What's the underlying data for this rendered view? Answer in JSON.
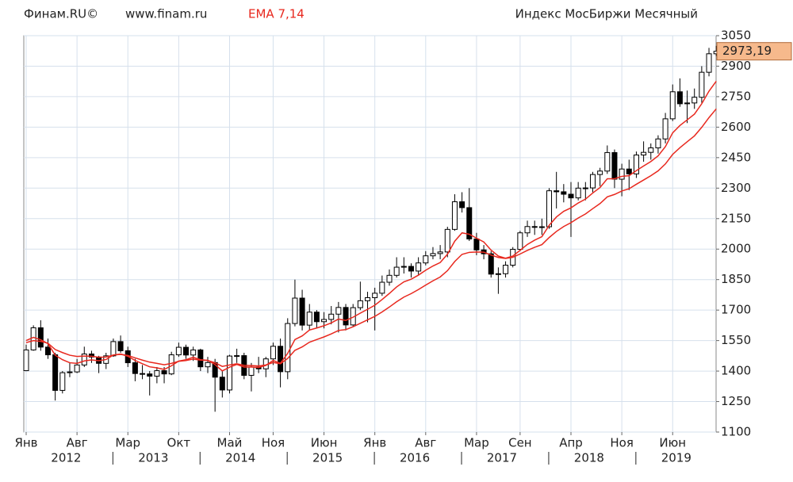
{
  "chart_data": {
    "type": "candlestick",
    "source": "Финам.RU©",
    "url": "www.finam.ru",
    "indicator": "EMA 7,14",
    "title": "Индекс МосБиржи Месячный",
    "categories": [
      "Янв",
      null,
      null,
      null,
      null,
      null,
      null,
      "Авг",
      null,
      null,
      null,
      null,
      null,
      null,
      "Мар",
      null,
      null,
      null,
      null,
      null,
      null,
      "Окт",
      null,
      null,
      null,
      null,
      null,
      null,
      "Май",
      null,
      null,
      null,
      null,
      null,
      "Ноя",
      null,
      null,
      null,
      null,
      null,
      null,
      "Июн",
      null,
      null,
      null,
      null,
      null,
      null,
      "Янв",
      null,
      null,
      null,
      null,
      null,
      null,
      "Авг",
      null,
      null,
      null,
      null,
      null,
      null,
      "Мар",
      null,
      null,
      null,
      null,
      null,
      "Сен",
      null,
      null,
      null,
      null,
      null,
      null,
      "Апр",
      null,
      null,
      null,
      null,
      null,
      null,
      "Ноя",
      null,
      null,
      null,
      null,
      null,
      null,
      "Июн",
      null,
      null,
      null,
      null,
      null,
      null
    ],
    "x_groups": [
      "2012",
      "2013",
      "2014",
      "2015",
      "2016",
      "2017",
      "2018",
      "2019"
    ],
    "open": [
      1402,
      1504,
      1613,
      1518,
      1480,
      1305,
      1392,
      1396,
      1430,
      1484,
      1469,
      1438,
      1475,
      1545,
      1500,
      1441,
      1388,
      1386,
      1375,
      1402,
      1386,
      1480,
      1517,
      1479,
      1504,
      1421,
      1442,
      1370,
      1307,
      1474,
      1476,
      1379,
      1420,
      1411,
      1460,
      1522,
      1397,
      1634,
      1759,
      1626,
      1690,
      1643,
      1654,
      1680,
      1713,
      1627,
      1712,
      1746,
      1761,
      1783,
      1837,
      1871,
      1911,
      1915,
      1892,
      1932,
      1967,
      1978,
      1986,
      2097,
      2233,
      2204,
      2050,
      1996,
      1977,
      1877,
      1879,
      1921,
      1999,
      2080,
      2111,
      2107,
      2110,
      2287,
      2282,
      2270,
      2252,
      2300,
      2301,
      2367,
      2384,
      2475,
      2344,
      2394,
      2370,
      2463,
      2476,
      2498,
      2542,
      2641,
      2774,
      2715,
      2719,
      2747,
      2870,
      2961
    ],
    "high": [
      1530,
      1625,
      1650,
      1560,
      1490,
      1400,
      1440,
      1460,
      1520,
      1500,
      1475,
      1490,
      1560,
      1575,
      1520,
      1460,
      1430,
      1400,
      1420,
      1420,
      1495,
      1540,
      1530,
      1520,
      1510,
      1470,
      1460,
      1400,
      1480,
      1510,
      1490,
      1440,
      1470,
      1470,
      1540,
      1560,
      1660,
      1850,
      1800,
      1730,
      1700,
      1690,
      1720,
      1740,
      1730,
      1730,
      1840,
      1790,
      1810,
      1870,
      1900,
      1960,
      1960,
      1930,
      1960,
      1990,
      2010,
      2020,
      2110,
      2270,
      2280,
      2300,
      2080,
      2020,
      1990,
      1910,
      1940,
      2010,
      2090,
      2140,
      2140,
      2150,
      2300,
      2380,
      2320,
      2330,
      2330,
      2330,
      2380,
      2400,
      2510,
      2490,
      2420,
      2440,
      2480,
      2530,
      2520,
      2560,
      2670,
      2810,
      2840,
      2780,
      2790,
      2900,
      2990,
      3000
    ],
    "low": [
      1400,
      1500,
      1500,
      1460,
      1255,
      1290,
      1370,
      1390,
      1420,
      1440,
      1390,
      1410,
      1470,
      1490,
      1420,
      1350,
      1360,
      1280,
      1340,
      1340,
      1380,
      1470,
      1460,
      1450,
      1400,
      1390,
      1200,
      1270,
      1290,
      1440,
      1360,
      1300,
      1390,
      1370,
      1430,
      1320,
      1360,
      1620,
      1600,
      1600,
      1610,
      1610,
      1630,
      1590,
      1600,
      1620,
      1700,
      1640,
      1600,
      1770,
      1820,
      1860,
      1880,
      1860,
      1870,
      1920,
      1950,
      1950,
      1960,
      2090,
      2180,
      2040,
      1970,
      1950,
      1860,
      1780,
      1860,
      1910,
      1990,
      2060,
      2070,
      2070,
      2100,
      2200,
      2230,
      2060,
      2240,
      2240,
      2280,
      2310,
      2370,
      2300,
      2260,
      2290,
      2350,
      2430,
      2440,
      2470,
      2520,
      2630,
      2700,
      2620,
      2690,
      2720,
      2850,
      2950
    ],
    "close": [
      1504,
      1613,
      1518,
      1480,
      1305,
      1392,
      1396,
      1430,
      1484,
      1469,
      1438,
      1475,
      1545,
      1500,
      1441,
      1388,
      1386,
      1375,
      1402,
      1386,
      1480,
      1517,
      1479,
      1504,
      1421,
      1442,
      1370,
      1307,
      1474,
      1476,
      1379,
      1420,
      1411,
      1460,
      1522,
      1397,
      1634,
      1759,
      1626,
      1690,
      1643,
      1654,
      1680,
      1713,
      1627,
      1712,
      1746,
      1761,
      1783,
      1837,
      1871,
      1911,
      1915,
      1892,
      1932,
      1967,
      1978,
      1986,
      2097,
      2233,
      2204,
      2050,
      1996,
      1977,
      1877,
      1879,
      1921,
      1999,
      2080,
      2111,
      2107,
      2110,
      2287,
      2282,
      2270,
      2252,
      2300,
      2301,
      2367,
      2384,
      2475,
      2344,
      2394,
      2370,
      2463,
      2476,
      2498,
      2542,
      2641,
      2774,
      2715,
      2719,
      2747,
      2870,
      2961,
      2973.19
    ],
    "up_color": "#ffffff",
    "down_color": "#000000",
    "series": [
      {
        "color": "#e8281e",
        "values": [
          1550,
          1566,
          1554,
          1535,
          1478,
          1456,
          1441,
          1438,
          1450,
          1455,
          1451,
          1457,
          1479,
          1484,
          1473,
          1452,
          1436,
          1421,
          1416,
          1408,
          1426,
          1449,
          1456,
          1468,
          1456,
          1453,
          1432,
          1401,
          1419,
          1433,
          1420,
          1420,
          1418,
          1428,
          1452,
          1438,
          1487,
          1555,
          1573,
          1602,
          1612,
          1623,
          1637,
          1656,
          1649,
          1665,
          1685,
          1704,
          1724,
          1752,
          1782,
          1814,
          1839,
          1852,
          1872,
          1896,
          1917,
          1934,
          1975,
          2039,
          2080,
          2073,
          2054,
          2035,
          1995,
          1966,
          1955,
          1966,
          1994,
          2023,
          2044,
          2061,
          2117,
          2158,
          2186,
          2203,
          2227,
          2246,
          2276,
          2303,
          2346,
          2346,
          2358,
          2361,
          2386,
          2409,
          2431,
          2459,
          2504,
          2572,
          2608,
          2636,
          2664,
          2715,
          2777,
          2826
        ]
      },
      {
        "color": "#e8281e",
        "values": [
          1540,
          1550,
          1546,
          1537,
          1506,
          1491,
          1478,
          1472,
          1474,
          1473,
          1468,
          1469,
          1479,
          1482,
          1477,
          1465,
          1454,
          1444,
          1438,
          1431,
          1438,
          1448,
          1452,
          1459,
          1454,
          1452,
          1441,
          1423,
          1430,
          1436,
          1428,
          1427,
          1425,
          1430,
          1442,
          1436,
          1462,
          1502,
          1519,
          1542,
          1555,
          1568,
          1583,
          1600,
          1604,
          1618,
          1635,
          1652,
          1669,
          1691,
          1715,
          1741,
          1764,
          1781,
          1801,
          1823,
          1844,
          1863,
          1894,
          1939,
          1974,
          1984,
          1986,
          1985,
          1971,
          1959,
          1954,
          1960,
          1976,
          1994,
          2009,
          2022,
          2057,
          2087,
          2111,
          2130,
          2153,
          2173,
          2199,
          2224,
          2257,
          2269,
          2286,
          2297,
          2319,
          2340,
          2361,
          2385,
          2419,
          2466,
          2499,
          2528,
          2557,
          2599,
          2647,
          2690
        ]
      }
    ],
    "last_price": {
      "value": 2973.19,
      "label": "2973,19"
    },
    "ylim": [
      1100,
      3050
    ],
    "yticks": [
      1100,
      1250,
      1400,
      1550,
      1700,
      1850,
      2000,
      2150,
      2300,
      2450,
      2600,
      2750,
      2900,
      3050
    ],
    "grid": true
  }
}
